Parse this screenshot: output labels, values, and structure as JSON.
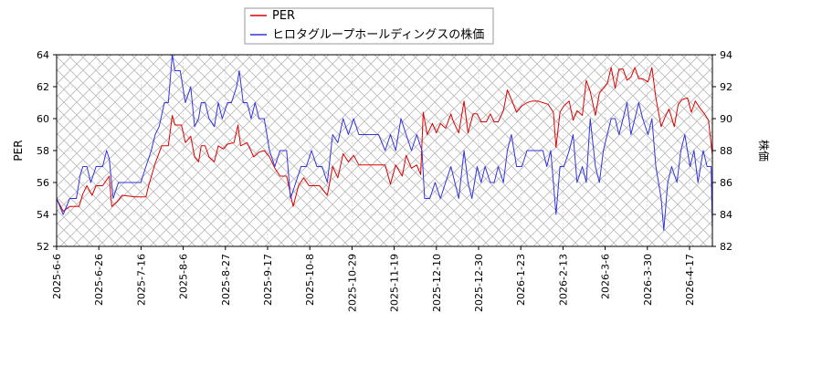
{
  "chart_data": {
    "type": "line",
    "title": "",
    "legend": {
      "placement": "top-center",
      "entries": [
        {
          "label": "PER",
          "color": "#dd0000"
        },
        {
          "label": "ヒロタグループホールディングスの株価",
          "color": "#3333dd"
        }
      ]
    },
    "grid": true,
    "left_axis": {
      "label": "PER",
      "range": [
        52,
        64
      ],
      "ticks": [
        52,
        54,
        56,
        58,
        60,
        62,
        64
      ]
    },
    "right_axis": {
      "label": "株価",
      "range": [
        82,
        94
      ],
      "ticks": [
        82,
        84,
        86,
        88,
        90,
        92,
        94
      ]
    },
    "x_tick_labels": [
      "2025-6-6",
      "2025-6-26",
      "2025-7-16",
      "2025-8-6",
      "2025-8-27",
      "2025-9-17",
      "2025-10-8",
      "2025-10-29",
      "2025-11-19",
      "2025-12-10",
      "2025-12-30",
      "2026-1-23",
      "2026-2-13",
      "2026-3-6",
      "2026-3-30",
      "2026-4-17"
    ],
    "series": [
      {
        "name": "PER",
        "axis": "left",
        "color": "#dd0000",
        "points": [
          [
            0,
            55.0
          ],
          [
            0.5,
            54.2
          ],
          [
            1,
            54.5
          ],
          [
            1.7,
            54.5
          ],
          [
            2,
            55.3
          ],
          [
            2.3,
            55.8
          ],
          [
            2.7,
            55.2
          ],
          [
            3,
            55.8
          ],
          [
            3.5,
            55.8
          ],
          [
            4,
            56.4
          ],
          [
            4.2,
            54.5
          ],
          [
            4.6,
            54.8
          ],
          [
            5,
            55.2
          ],
          [
            6,
            55.1
          ],
          [
            6.8,
            55.1
          ],
          [
            7,
            55.8
          ],
          [
            7.5,
            57.2
          ],
          [
            8,
            58.3
          ],
          [
            8.5,
            58.3
          ],
          [
            8.8,
            60.2
          ],
          [
            9,
            59.6
          ],
          [
            9.5,
            59.6
          ],
          [
            9.8,
            58.5
          ],
          [
            10.2,
            58.9
          ],
          [
            10.5,
            57.6
          ],
          [
            10.8,
            57.3
          ],
          [
            11,
            58.3
          ],
          [
            11.3,
            58.3
          ],
          [
            11.6,
            57.6
          ],
          [
            12,
            57.3
          ],
          [
            12.3,
            58.3
          ],
          [
            12.7,
            58.1
          ],
          [
            13,
            58.4
          ],
          [
            13.5,
            58.5
          ],
          [
            13.8,
            59.6
          ],
          [
            14,
            58.3
          ],
          [
            14.5,
            58.5
          ],
          [
            15,
            57.6
          ],
          [
            15.4,
            57.9
          ],
          [
            15.8,
            58.0
          ],
          [
            16.2,
            57.6
          ],
          [
            16.6,
            56.9
          ],
          [
            17,
            56.4
          ],
          [
            17.5,
            56.4
          ],
          [
            18,
            54.5
          ],
          [
            18.4,
            55.8
          ],
          [
            18.8,
            56.3
          ],
          [
            19.2,
            55.8
          ],
          [
            20,
            55.8
          ],
          [
            20.6,
            55.2
          ],
          [
            21,
            57.0
          ],
          [
            21.4,
            56.3
          ],
          [
            21.8,
            57.8
          ],
          [
            22.2,
            57.3
          ],
          [
            22.6,
            57.7
          ],
          [
            23,
            57.1
          ],
          [
            24,
            57.1
          ],
          [
            25,
            57.1
          ],
          [
            25.4,
            55.9
          ],
          [
            25.8,
            57.1
          ],
          [
            26.3,
            56.4
          ],
          [
            26.6,
            57.7
          ],
          [
            27,
            56.9
          ],
          [
            27.4,
            57.1
          ],
          [
            27.7,
            56.5
          ],
          [
            27.9,
            60.4
          ],
          [
            28.2,
            59.0
          ],
          [
            28.6,
            59.7
          ],
          [
            28.9,
            59.1
          ],
          [
            29.2,
            59.7
          ],
          [
            29.6,
            59.4
          ],
          [
            30,
            60.3
          ],
          [
            30.2,
            59.8
          ],
          [
            30.6,
            59.1
          ],
          [
            31,
            61.1
          ],
          [
            31.3,
            59.1
          ],
          [
            31.7,
            60.3
          ],
          [
            32,
            60.3
          ],
          [
            32.3,
            59.8
          ],
          [
            32.7,
            59.8
          ],
          [
            33,
            60.3
          ],
          [
            33.3,
            59.8
          ],
          [
            33.6,
            59.8
          ],
          [
            34,
            60.5
          ],
          [
            34.3,
            61.8
          ],
          [
            34.6,
            61.2
          ],
          [
            35,
            60.4
          ],
          [
            35.4,
            60.8
          ],
          [
            35.8,
            61.0
          ],
          [
            36.2,
            61.1
          ],
          [
            36.6,
            61.1
          ],
          [
            37,
            61.0
          ],
          [
            37.4,
            60.9
          ],
          [
            37.8,
            60.4
          ],
          [
            38,
            58.2
          ],
          [
            38.3,
            60.4
          ],
          [
            38.6,
            60.8
          ],
          [
            39,
            61.1
          ],
          [
            39.3,
            59.9
          ],
          [
            39.6,
            60.5
          ],
          [
            40,
            60.2
          ],
          [
            40.3,
            62.4
          ],
          [
            40.6,
            61.7
          ],
          [
            41,
            60.2
          ],
          [
            41.3,
            61.6
          ],
          [
            41.6,
            61.9
          ],
          [
            41.9,
            62.2
          ],
          [
            42.2,
            63.2
          ],
          [
            42.5,
            61.9
          ],
          [
            42.8,
            63.1
          ],
          [
            43.1,
            63.1
          ],
          [
            43.4,
            62.4
          ],
          [
            43.7,
            62.6
          ],
          [
            44,
            63.2
          ],
          [
            44.3,
            62.5
          ],
          [
            44.6,
            62.5
          ],
          [
            45,
            62.3
          ],
          [
            45.3,
            63.2
          ],
          [
            45.6,
            61.3
          ],
          [
            46,
            59.5
          ],
          [
            46.3,
            60.1
          ],
          [
            46.6,
            60.6
          ],
          [
            47,
            59.5
          ],
          [
            47.3,
            60.9
          ],
          [
            47.6,
            61.2
          ],
          [
            48,
            61.3
          ],
          [
            48.3,
            60.4
          ],
          [
            48.6,
            61.1
          ],
          [
            49,
            60.6
          ],
          [
            49.3,
            60.3
          ],
          [
            49.6,
            59.9
          ],
          [
            49.9,
            57.7
          ]
        ]
      },
      {
        "name": "ヒロタグループホールディングスの株価",
        "axis": "right",
        "color": "#3333dd",
        "points": [
          [
            0,
            85.0
          ],
          [
            0.5,
            84.0
          ],
          [
            1,
            85.0
          ],
          [
            1.5,
            85.0
          ],
          [
            1.8,
            86.5
          ],
          [
            2,
            87.0
          ],
          [
            2.3,
            87.0
          ],
          [
            2.6,
            86.0
          ],
          [
            3,
            87.0
          ],
          [
            3.5,
            87.0
          ],
          [
            3.8,
            88.0
          ],
          [
            4,
            87.5
          ],
          [
            4.3,
            85.0
          ],
          [
            4.7,
            86.0
          ],
          [
            5,
            86.0
          ],
          [
            5.5,
            86.0
          ],
          [
            6,
            86.0
          ],
          [
            6.4,
            86.0
          ],
          [
            6.8,
            87.0
          ],
          [
            7.2,
            88.0
          ],
          [
            7.5,
            89.0
          ],
          [
            7.8,
            89.5
          ],
          [
            8.2,
            91.0
          ],
          [
            8.5,
            91.0
          ],
          [
            8.8,
            94.0
          ],
          [
            9,
            93.0
          ],
          [
            9.4,
            93.0
          ],
          [
            9.8,
            91.0
          ],
          [
            10.2,
            92.0
          ],
          [
            10.5,
            89.5
          ],
          [
            10.8,
            90.0
          ],
          [
            11,
            91.0
          ],
          [
            11.3,
            91.0
          ],
          [
            11.6,
            90.0
          ],
          [
            12,
            89.5
          ],
          [
            12.3,
            91.0
          ],
          [
            12.6,
            90.0
          ],
          [
            13,
            91.0
          ],
          [
            13.3,
            91.0
          ],
          [
            13.7,
            92.0
          ],
          [
            13.9,
            93.0
          ],
          [
            14.2,
            91.0
          ],
          [
            14.5,
            91.0
          ],
          [
            14.8,
            90.0
          ],
          [
            15.1,
            91.0
          ],
          [
            15.4,
            90.0
          ],
          [
            15.8,
            90.0
          ],
          [
            16.2,
            88.0
          ],
          [
            16.6,
            87.0
          ],
          [
            17,
            88.0
          ],
          [
            17.5,
            88.0
          ],
          [
            17.8,
            85.0
          ],
          [
            18.2,
            86.0
          ],
          [
            18.6,
            87.0
          ],
          [
            19,
            87.0
          ],
          [
            19.4,
            88.0
          ],
          [
            19.8,
            87.0
          ],
          [
            20.2,
            87.0
          ],
          [
            20.6,
            86.0
          ],
          [
            21,
            89.0
          ],
          [
            21.4,
            88.5
          ],
          [
            21.8,
            90.0
          ],
          [
            22.2,
            89.0
          ],
          [
            22.6,
            90.0
          ],
          [
            23,
            89.0
          ],
          [
            24,
            89.0
          ],
          [
            24.5,
            89.0
          ],
          [
            25,
            88.0
          ],
          [
            25.4,
            89.0
          ],
          [
            25.8,
            88.0
          ],
          [
            26.2,
            90.0
          ],
          [
            26.6,
            89.0
          ],
          [
            27,
            88.0
          ],
          [
            27.4,
            89.0
          ],
          [
            27.8,
            88.0
          ],
          [
            28,
            85.0
          ],
          [
            28.4,
            85.0
          ],
          [
            28.8,
            86.0
          ],
          [
            29.2,
            85.0
          ],
          [
            29.6,
            86.0
          ],
          [
            30,
            87.0
          ],
          [
            30.3,
            86.0
          ],
          [
            30.6,
            85.0
          ],
          [
            31,
            88.0
          ],
          [
            31.3,
            86.0
          ],
          [
            31.6,
            85.0
          ],
          [
            32,
            87.0
          ],
          [
            32.3,
            86.0
          ],
          [
            32.6,
            87.0
          ],
          [
            33,
            86.0
          ],
          [
            33.3,
            86.0
          ],
          [
            33.6,
            87.0
          ],
          [
            34,
            86.0
          ],
          [
            34.3,
            88.0
          ],
          [
            34.6,
            89.0
          ],
          [
            35,
            87.0
          ],
          [
            35.4,
            87.0
          ],
          [
            35.8,
            88.0
          ],
          [
            36.2,
            88.0
          ],
          [
            36.6,
            88.0
          ],
          [
            37,
            88.0
          ],
          [
            37.3,
            87.0
          ],
          [
            37.6,
            88.0
          ],
          [
            38,
            84.0
          ],
          [
            38.3,
            87.0
          ],
          [
            38.6,
            87.0
          ],
          [
            39,
            88.0
          ],
          [
            39.3,
            89.0
          ],
          [
            39.6,
            86.0
          ],
          [
            40,
            87.0
          ],
          [
            40.3,
            86.0
          ],
          [
            40.6,
            90.0
          ],
          [
            41,
            87.0
          ],
          [
            41.3,
            86.0
          ],
          [
            41.6,
            88.0
          ],
          [
            41.9,
            89.0
          ],
          [
            42.2,
            90.0
          ],
          [
            42.5,
            90.0
          ],
          [
            42.8,
            89.0
          ],
          [
            43.1,
            90.0
          ],
          [
            43.4,
            91.0
          ],
          [
            43.7,
            89.0
          ],
          [
            44,
            90.0
          ],
          [
            44.3,
            91.0
          ],
          [
            44.6,
            90.0
          ],
          [
            45,
            89.0
          ],
          [
            45.3,
            90.0
          ],
          [
            45.6,
            87.0
          ],
          [
            46,
            85.0
          ],
          [
            46.2,
            83.0
          ],
          [
            46.5,
            86.0
          ],
          [
            46.8,
            87.0
          ],
          [
            47.2,
            86.0
          ],
          [
            47.5,
            88.0
          ],
          [
            47.8,
            89.0
          ],
          [
            48.2,
            87.0
          ],
          [
            48.5,
            88.0
          ],
          [
            48.8,
            86.0
          ],
          [
            49.2,
            88.0
          ],
          [
            49.5,
            87.0
          ],
          [
            49.8,
            87.0
          ],
          [
            49.9,
            83.0
          ]
        ]
      }
    ]
  }
}
